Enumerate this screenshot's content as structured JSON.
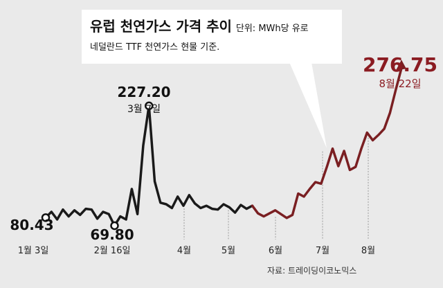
{
  "title": "유럽 천연가스 가격 추이",
  "unit": "단위: MWh당 유로",
  "subtitle": "네덜란드 TTF 천연가스 현물 기준.",
  "source": "자료: 트레이딩이코노믹스",
  "colors": {
    "line": "#1a1a1a",
    "highlight": "#7a1f22",
    "accent": "#8b1c22",
    "background": "#eaeaea"
  },
  "chart_data": {
    "type": "line",
    "x_ticks": [
      "1월 3일",
      "2월 16일",
      "4월",
      "5월",
      "6월",
      "7월",
      "8월"
    ],
    "annotations": [
      {
        "value": "80.43",
        "label": ""
      },
      {
        "value": "69.80",
        "label": ""
      },
      {
        "value": "227.20",
        "label": "3월 7일"
      },
      {
        "value": "276.75",
        "label": "8월 22일"
      }
    ],
    "series": [
      {
        "values": [
          80.4,
          88,
          78,
          91,
          82,
          90,
          84,
          92,
          91,
          79,
          88,
          85,
          69.8,
          82,
          78,
          118,
          85,
          175,
          227.2,
          128,
          100,
          98,
          93,
          108,
          96,
          110,
          99,
          93,
          96,
          92,
          91,
          98,
          94,
          87,
          97,
          92,
          96,
          86,
          82,
          86,
          90,
          85,
          80,
          84,
          112,
          108,
          118,
          127,
          125,
          147,
          171,
          148,
          168,
          143,
          147,
          171,
          192,
          182,
          189,
          197,
          218,
          248,
          276.75
        ]
      }
    ]
  }
}
